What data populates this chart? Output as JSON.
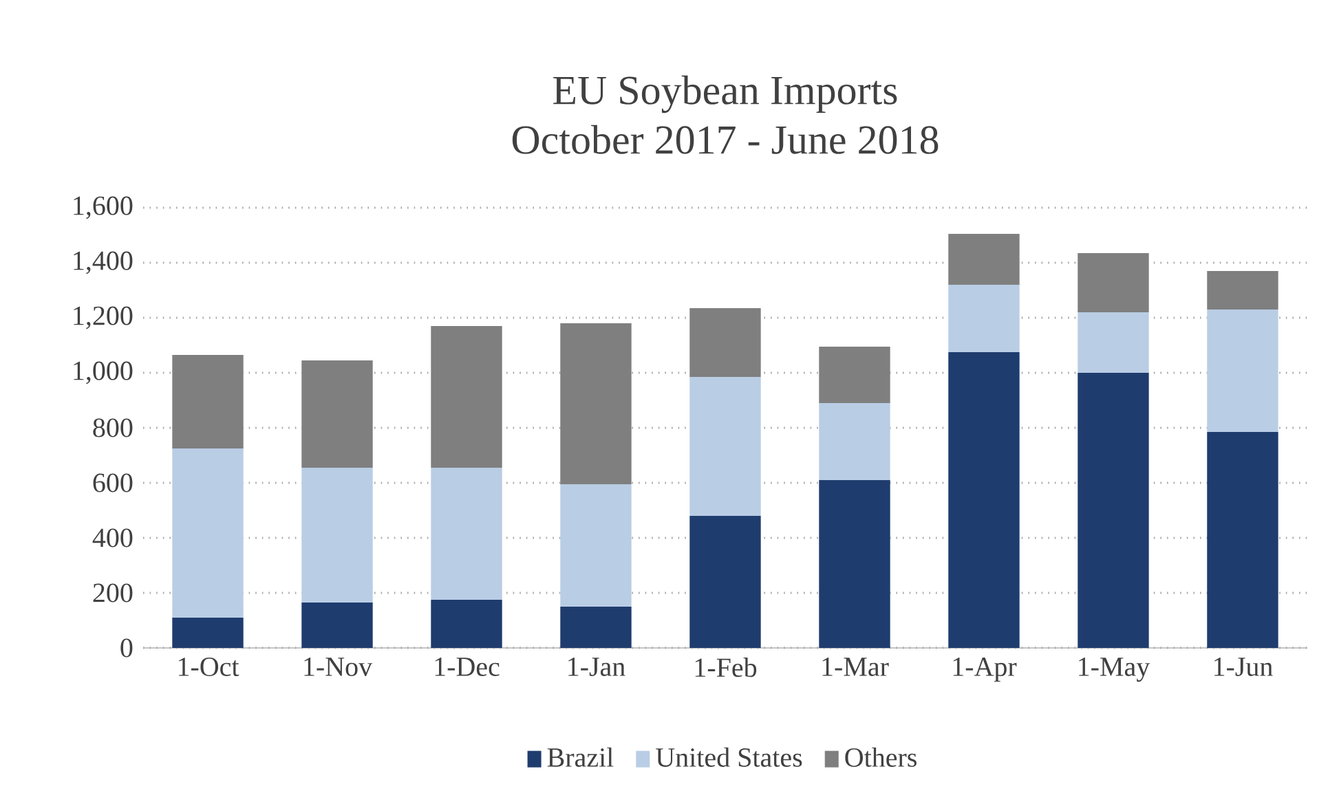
{
  "chart_data": {
    "type": "bar",
    "stacked": true,
    "title": "EU Soybean Imports",
    "subtitle": "October 2017 - June 2018",
    "categories": [
      "1-Oct",
      "1-Nov",
      "1-Dec",
      "1-Jan",
      "1-Feb",
      "1-Mar",
      "1-Apr",
      "1-May",
      "1-Jun"
    ],
    "series": [
      {
        "name": "Brazil",
        "color": "#1f3c6e",
        "values": [
          110,
          165,
          175,
          150,
          480,
          610,
          1075,
          1000,
          785
        ]
      },
      {
        "name": "United States",
        "color": "#b9cde5",
        "values": [
          615,
          490,
          480,
          445,
          505,
          280,
          245,
          220,
          445
        ]
      },
      {
        "name": "Others",
        "color": "#7f7f7f",
        "values": [
          340,
          390,
          515,
          585,
          250,
          205,
          185,
          215,
          140
        ]
      }
    ],
    "ylim": [
      0,
      1600
    ],
    "yticks": [
      {
        "value": 0,
        "label": "0"
      },
      {
        "value": 200,
        "label": "200"
      },
      {
        "value": 400,
        "label": "400"
      },
      {
        "value": 600,
        "label": "600"
      },
      {
        "value": 800,
        "label": "800"
      },
      {
        "value": 1000,
        "label": "1,000"
      },
      {
        "value": 1200,
        "label": "1,200"
      },
      {
        "value": 1400,
        "label": "1,400"
      },
      {
        "value": 1600,
        "label": "1,600"
      }
    ],
    "grid": "y",
    "legend": "bottom"
  }
}
